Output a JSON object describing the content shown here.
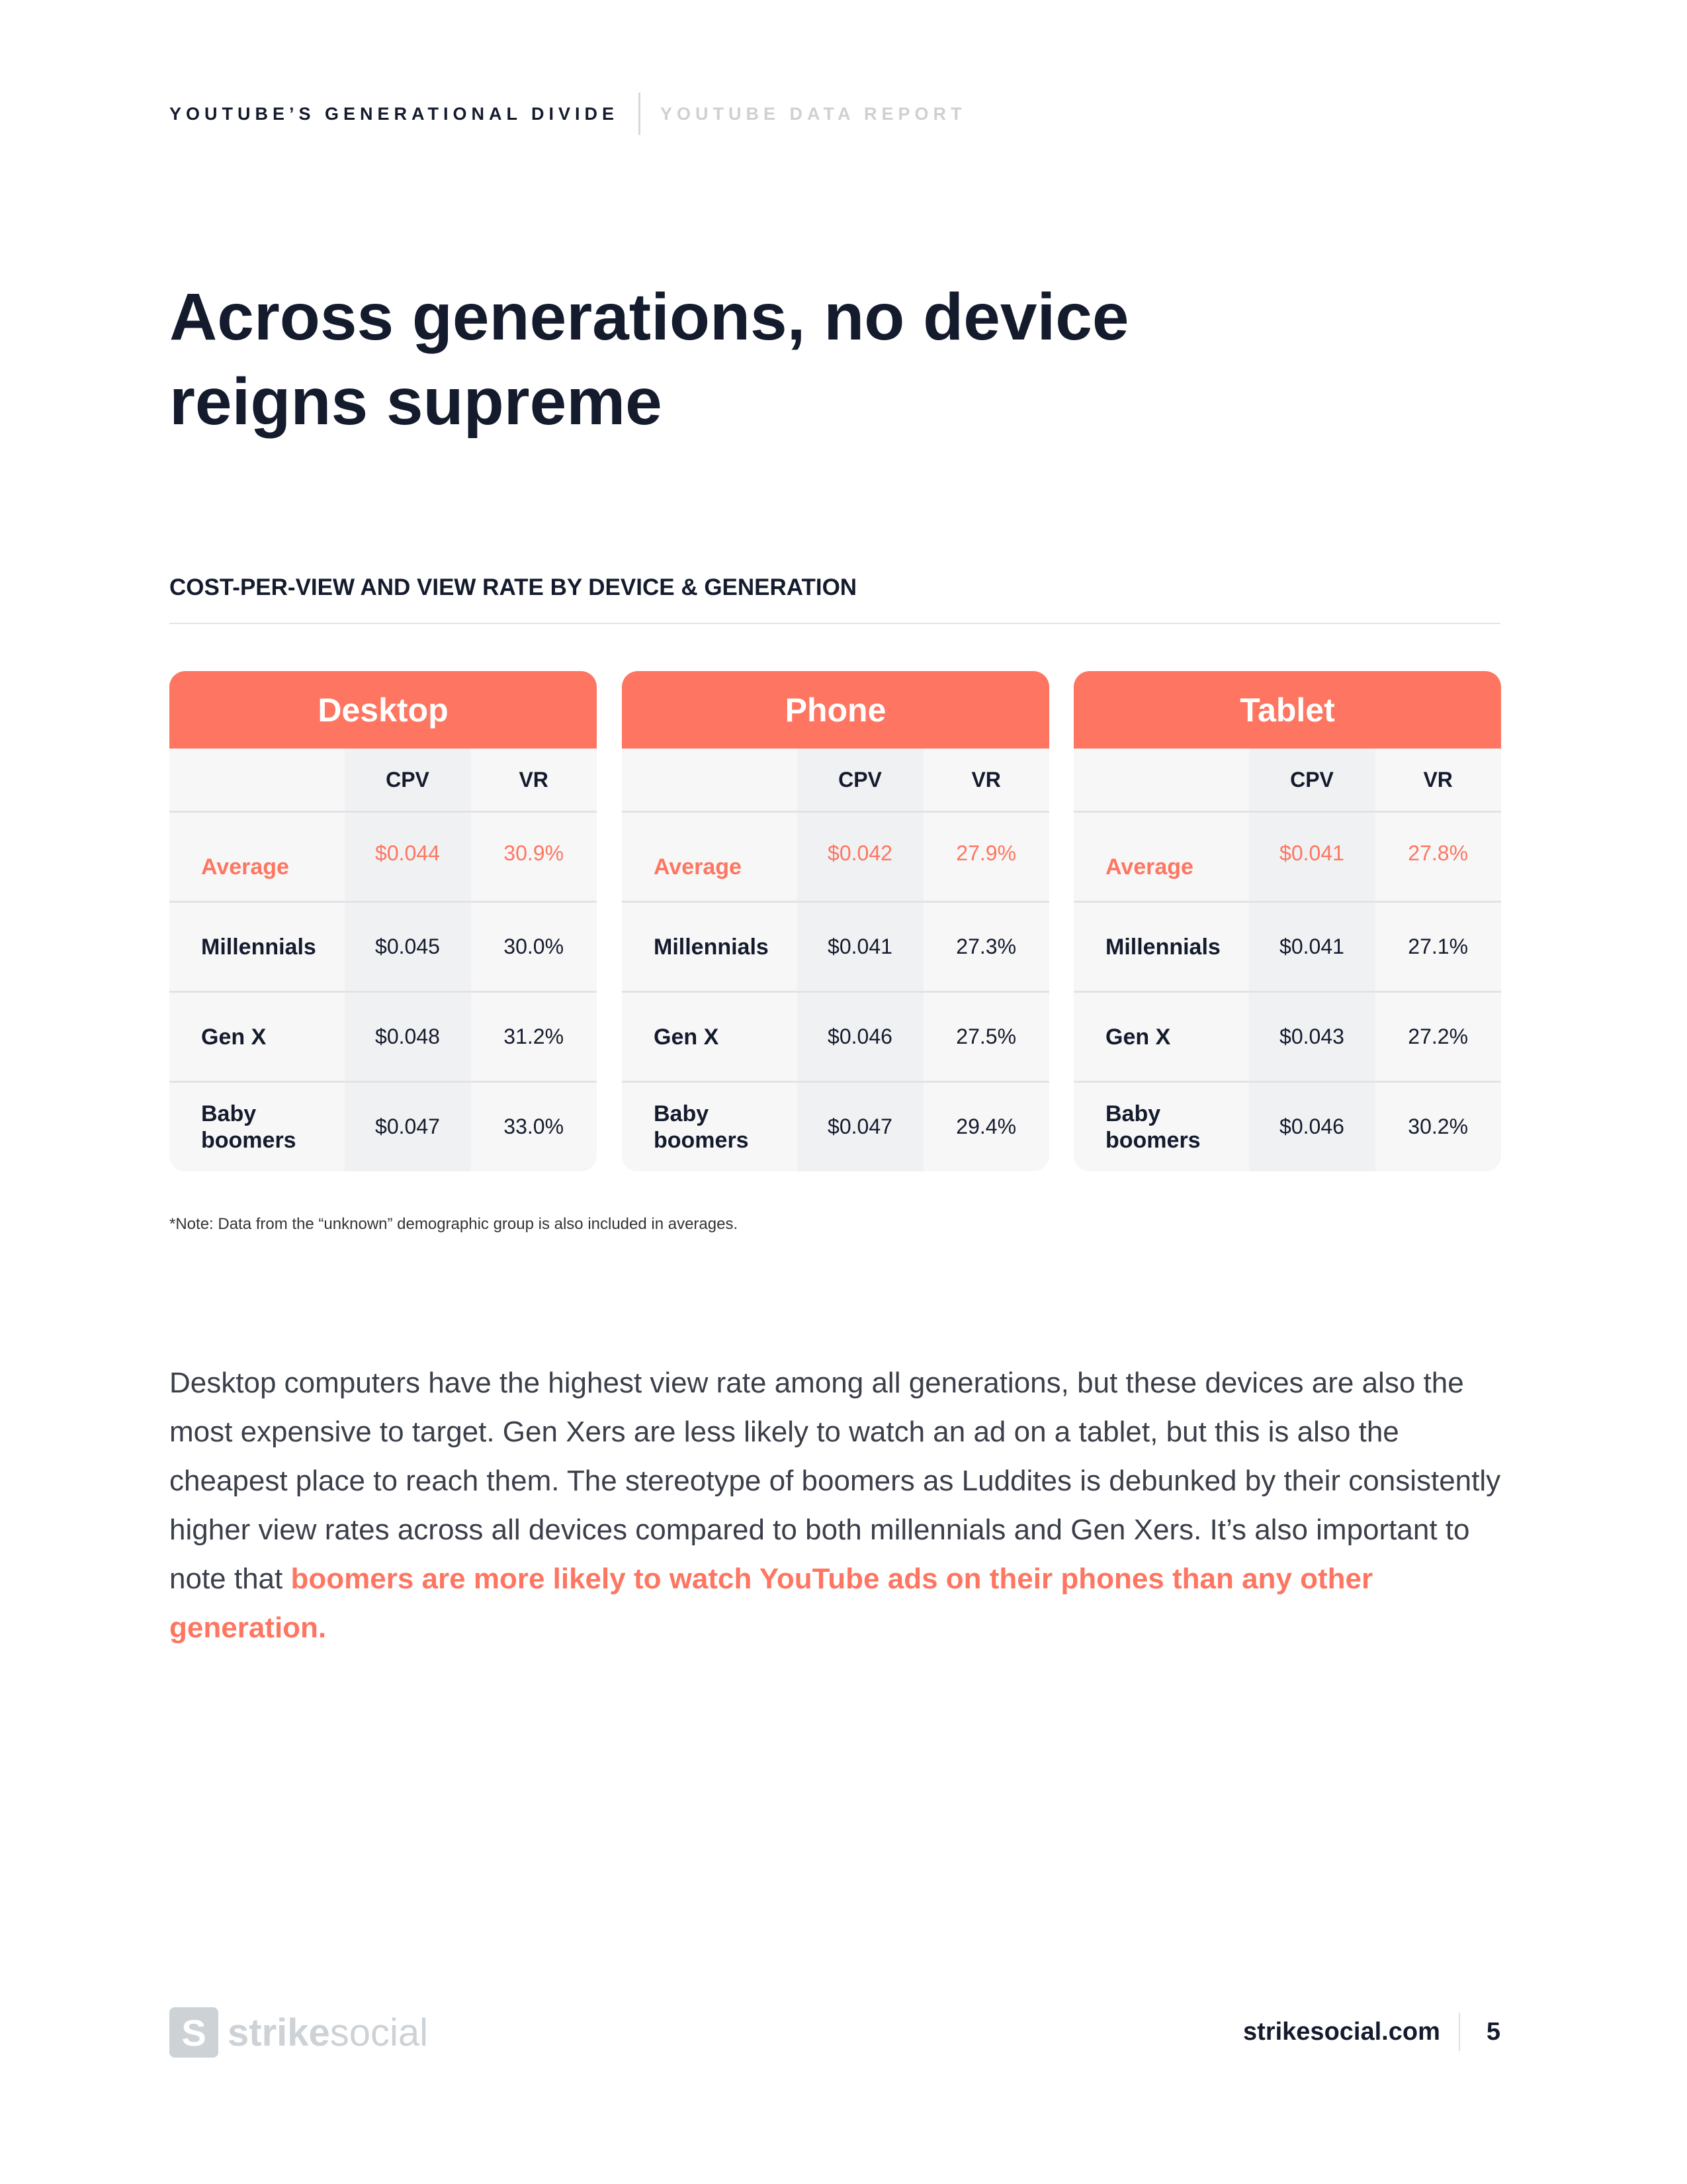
{
  "header": {
    "section": "YOUTUBE’S GENERATIONAL DIVIDE",
    "report": "YOUTUBE DATA REPORT"
  },
  "title": "Across generations, no device reigns supreme",
  "subtitle": "COST-PER-VIEW AND VIEW RATE BY DEVICE & GENERATION",
  "columns": {
    "cpv": "CPV",
    "vr": "VR"
  },
  "tables": [
    {
      "device": "Desktop",
      "rows": [
        {
          "label": "Average",
          "cpv": "$0.044",
          "vr": "30.9%"
        },
        {
          "label": "Millennials",
          "cpv": "$0.045",
          "vr": "30.0%"
        },
        {
          "label": "Gen X",
          "cpv": "$0.048",
          "vr": "31.2%"
        },
        {
          "label": "Baby boomers",
          "cpv": "$0.047",
          "vr": "33.0%"
        }
      ]
    },
    {
      "device": "Phone",
      "rows": [
        {
          "label": "Average",
          "cpv": "$0.042",
          "vr": "27.9%"
        },
        {
          "label": "Millennials",
          "cpv": "$0.041",
          "vr": "27.3%"
        },
        {
          "label": "Gen X",
          "cpv": "$0.046",
          "vr": "27.5%"
        },
        {
          "label": "Baby boomers",
          "cpv": "$0.047",
          "vr": "29.4%"
        }
      ]
    },
    {
      "device": "Tablet",
      "rows": [
        {
          "label": "Average",
          "cpv": "$0.041",
          "vr": "27.8%"
        },
        {
          "label": "Millennials",
          "cpv": "$0.041",
          "vr": "27.1%"
        },
        {
          "label": "Gen X",
          "cpv": "$0.043",
          "vr": "27.2%"
        },
        {
          "label": "Baby boomers",
          "cpv": "$0.046",
          "vr": "30.2%"
        }
      ]
    }
  ],
  "note": "*Note: Data from the “unknown” demographic group is also included in averages.",
  "paragraph": {
    "body": "Desktop computers have the highest view rate among all generations, but these devices are also the most expensive to target. Gen Xers are less likely to watch an ad on a tablet, but this is also the cheapest place to reach them. The stereotype of boomers as Luddites is debunked by their consistently higher view rates across all devices compared to both millennials and Gen Xers. It’s also important to note that ",
    "highlight": "boomers are more likely to watch YouTube ads on their phones than any other generation."
  },
  "footer": {
    "logo_strike": "strike",
    "logo_social": "social",
    "url": "strikesocial.com",
    "page": "5"
  },
  "colors": {
    "accent": "#fe7661",
    "navy": "#141b2d"
  }
}
